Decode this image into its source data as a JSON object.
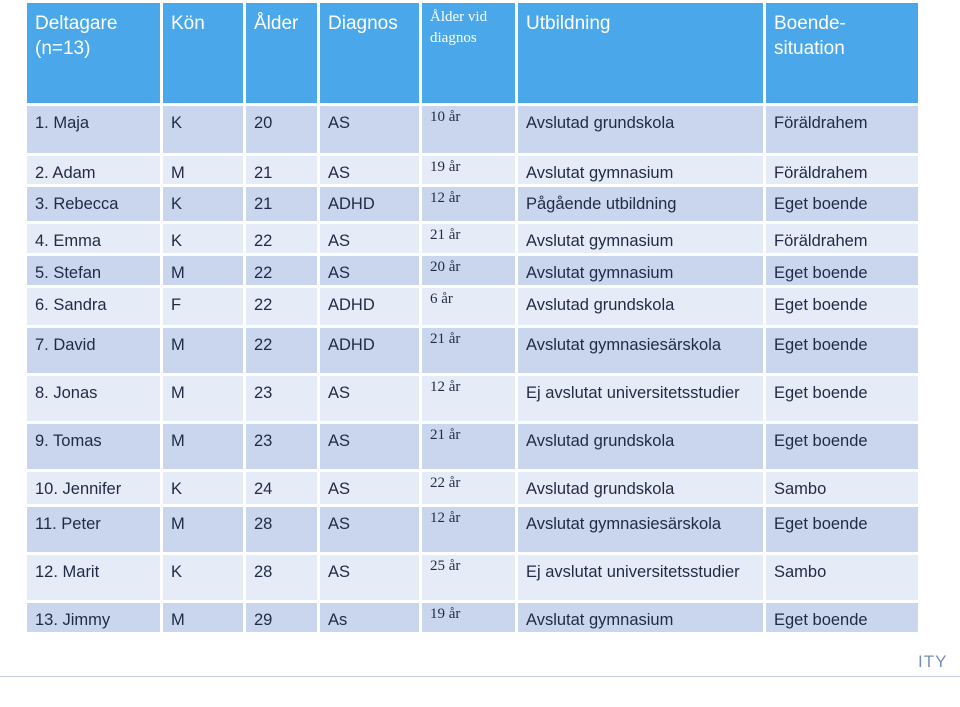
{
  "headers": [
    {
      "line1": "Deltagare",
      "line2": "(n=13)"
    },
    {
      "line1": "Kön",
      "line2": ""
    },
    {
      "line1": "Ålder",
      "line2": ""
    },
    {
      "line1": "Diagnos",
      "line2": ""
    },
    {
      "line1": "Ålder vid",
      "line2": "diagnos"
    },
    {
      "line1": "Utbildning",
      "line2": ""
    },
    {
      "line1": "Boende-",
      "line2": "situation"
    }
  ],
  "rows": [
    {
      "name": "1. Maja",
      "kon": "K",
      "alder": "20",
      "diagnos": "AS",
      "alder_vid": "10 år",
      "utbildning": "Avslutad grundskola",
      "boende": "Föräldrahem"
    },
    {
      "name": "2. Adam",
      "kon": "M",
      "alder": "21",
      "diagnos": "AS",
      "alder_vid": "19 år",
      "utbildning": "Avslutat gymnasium",
      "boende": "Föräldrahem"
    },
    {
      "name": "3. Rebecca",
      "kon": "K",
      "alder": "21",
      "diagnos": "ADHD",
      "alder_vid": "12 år",
      "utbildning": "Pågående utbildning",
      "boende": "Eget boende"
    },
    {
      "name": "4. Emma",
      "kon": "K",
      "alder": "22",
      "diagnos": "AS",
      "alder_vid": "21 år",
      "utbildning": "Avslutat gymnasium",
      "boende": "Föräldrahem"
    },
    {
      "name": "5. Stefan",
      "kon": "M",
      "alder": "22",
      "diagnos": "AS",
      "alder_vid": "20 år",
      "utbildning": "Avslutat gymnasium",
      "boende": "Eget boende"
    },
    {
      "name": "6. Sandra",
      "kon": "F",
      "alder": "22",
      "diagnos": "ADHD",
      "alder_vid": "6 år",
      "utbildning": "Avslutad grundskola",
      "boende": "Eget boende"
    },
    {
      "name": "7. David",
      "kon": "M",
      "alder": "22",
      "diagnos": "ADHD",
      "alder_vid": "21 år",
      "utbildning": "Avslutat gymnasiesärskola",
      "boende": "Eget boende"
    },
    {
      "name": "8. Jonas",
      "kon": "M",
      "alder": "23",
      "diagnos": "AS",
      "alder_vid": "12 år",
      "utbildning": "Ej avslutat universitetsstudier",
      "boende": "Eget boende"
    },
    {
      "name": "9. Tomas",
      "kon": "M",
      "alder": "23",
      "diagnos": "AS",
      "alder_vid": "21 år",
      "utbildning": "Avslutad grundskola",
      "boende": "Eget boende"
    },
    {
      "name": "10. Jennifer",
      "kon": "K",
      "alder": "24",
      "diagnos": "AS",
      "alder_vid": "22 år",
      "utbildning": "Avslutad grundskola",
      "boende": "Sambo"
    },
    {
      "name": "11. Peter",
      "kon": "M",
      "alder": "28",
      "diagnos": "AS",
      "alder_vid": "12 år",
      "utbildning": "Avslutat gymnasiesärskola",
      "boende": "Eget boende"
    },
    {
      "name": "12. Marit",
      "kon": "K",
      "alder": "28",
      "diagnos": "AS",
      "alder_vid": "25 år",
      "utbildning": "Ej avslutat universitetsstudier",
      "boende": "Sambo"
    },
    {
      "name": "13. Jimmy",
      "kon": "M",
      "alder": "29",
      "diagnos": "As",
      "alder_vid": "19 år",
      "utbildning": "Avslutat gymnasium",
      "boende": "Eget boende"
    }
  ],
  "footer_fragment": "ITY",
  "colors": {
    "header": "#4aa8ea",
    "row_light": "#e6ecf7",
    "row_dark": "#cad6ee",
    "text": "#1f2a44"
  }
}
